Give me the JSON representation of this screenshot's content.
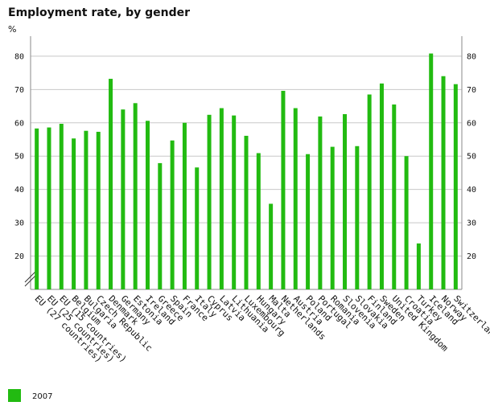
{
  "chart_data": {
    "type": "bar",
    "title": "Employment rate, by gender",
    "unit_label": "%",
    "ylim": [
      10,
      86
    ],
    "yticks": [
      20,
      30,
      40,
      50,
      60,
      70,
      80
    ],
    "grid": true,
    "axis_break": true,
    "legend_position": "bottom-left",
    "categories": [
      "EU (27 countries)",
      "EU (25 countries)",
      "EU (15 countries)",
      "Belgium",
      "Bulgaria",
      "Czech Republic",
      "Denmark",
      "Germany",
      "Estonia",
      "Ireland",
      "Greece",
      "Spain",
      "France",
      "Italy",
      "Cyprus",
      "Latvia",
      "Lithuania",
      "Luxembourg",
      "Hungary",
      "Malta",
      "Netherlands",
      "Austria",
      "Poland",
      "Portugal",
      "Romania",
      "Slovenia",
      "Slovakia",
      "Finland",
      "Sweden",
      "United Kingdom",
      "Croatia",
      "Turkey",
      "Iceland",
      "Norway",
      "Switzerland"
    ],
    "series": [
      {
        "name": "2007",
        "color": "#22bb11",
        "values": [
          58.3,
          58.6,
          59.7,
          55.3,
          57.6,
          57.3,
          73.2,
          64.0,
          65.9,
          60.6,
          47.9,
          54.7,
          60.0,
          46.6,
          62.4,
          64.4,
          62.2,
          56.1,
          50.9,
          35.7,
          69.6,
          64.4,
          50.6,
          61.9,
          52.8,
          62.6,
          53.0,
          68.5,
          71.8,
          65.5,
          50.0,
          23.8,
          80.8,
          74.0,
          71.6
        ]
      }
    ]
  }
}
